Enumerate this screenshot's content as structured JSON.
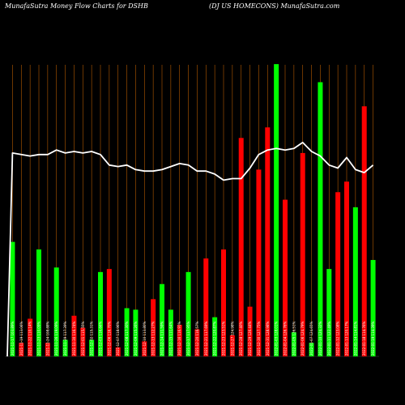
{
  "chart_data": {
    "type": "bar",
    "title": "MunafaSutra  Money Flow  Charts for DSHB",
    "subtitle": "(DJ US HOMECONS) MunafaSutra.com",
    "colors": {
      "up": "#00ff00",
      "down": "#ff0000",
      "line": "#ffffff",
      "grid": "#b35900",
      "background": "#000000"
    },
    "categories": [
      "2021-11-17 103.89%",
      "2021-11-19 113.06%",
      "2021-11-22 110.14%",
      "2021-11-23 110.09%",
      "2021-11-24 108.88%",
      "2021-11-26 119.09%",
      "2021-11-29 117.39%",
      "2021-11-30 116.74%",
      "2021-12-01 115.55%",
      "2021-12-02 115.31%",
      "2021-12-03 116.66%",
      "2021-12-06 116.70%",
      "2021-12-07 118.96%",
      "2021-12-08 117.30%",
      "2021-12-09 115.26%",
      "2021-12-10 113.80%",
      "2021-12-13 112.27%",
      "2021-12-14 111.59%",
      "2021-12-15 111.64%",
      "2021-12-16 116.91%",
      "2021-12-17 117.95%",
      "2021-12-20 116.57%",
      "2021-12-21 117.69%",
      "2021-12-22 120.87%",
      "2021-12-23 123.51%",
      "2021-12-27 124.98%",
      "2021-12-28 127.40%",
      "2021-12-29 126.44%",
      "2021-12-30 127.75%",
      "2021-12-31 128.98%",
      "2022-01-03 128.01%",
      "2022-01-04 126.76%",
      "2022-01-05 126.51%",
      "2022-01-06 124.79%",
      "2022-01-07 124.65%",
      "2022-01-10 124.32%",
      "2022-01-11 122.49%",
      "2022-01-12 123.08%",
      "2022-01-13 120.17%",
      "2022-01-14 114.81%",
      "2022-01-18 114.76%",
      "2022-01-19 114.39%"
    ],
    "series": [
      {
        "kind": "bar",
        "values": [
          76,
          9,
          25,
          71,
          9,
          59,
          11,
          27,
          19,
          11,
          56,
          58,
          6,
          32,
          31,
          10,
          38,
          48,
          31,
          21,
          56,
          18,
          65,
          26,
          71,
          14,
          145,
          33,
          124,
          152,
          194,
          104,
          16,
          135,
          9,
          182,
          58,
          109,
          116,
          99,
          166,
          64
        ],
        "direction": [
          "up",
          "down",
          "down",
          "up",
          "down",
          "up",
          "up",
          "down",
          "down",
          "up",
          "up",
          "down",
          "down",
          "up",
          "up",
          "down",
          "down",
          "up",
          "up",
          "down",
          "up",
          "down",
          "down",
          "up",
          "down",
          "down",
          "down",
          "down",
          "down",
          "down",
          "up",
          "down",
          "up",
          "down",
          "up",
          "up",
          "up",
          "down",
          "down",
          "up",
          "down",
          "up"
        ]
      },
      {
        "kind": "line",
        "values": [
          135,
          134,
          133,
          134,
          134,
          137,
          135,
          136,
          135,
          136,
          134,
          127,
          126,
          127,
          124,
          123,
          123,
          124,
          126,
          128,
          127,
          123,
          123,
          121,
          117,
          118,
          118,
          125,
          134,
          137,
          138,
          137,
          138,
          142,
          136,
          133,
          127,
          125,
          132,
          124,
          122,
          127
        ]
      }
    ],
    "ylim": [
      0,
      200
    ],
    "grid": "vertical"
  }
}
